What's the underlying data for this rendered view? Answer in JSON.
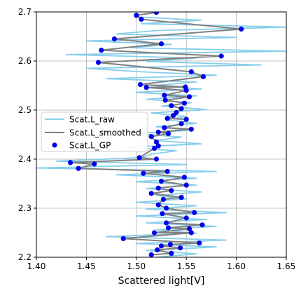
{
  "chart_data": {
    "type": "line",
    "xlabel": "Scattered light[V]",
    "ylabel": "",
    "xlim": [
      1.4,
      1.65
    ],
    "ylim": [
      2.2,
      2.7
    ],
    "grid": true,
    "legend_position": "center-left",
    "x_ticks": [
      "1.40",
      "1.45",
      "1.50",
      "1.55",
      "1.60",
      "1.65"
    ],
    "y_ticks": [
      "2.2",
      "2.3",
      "2.4",
      "2.5",
      "2.6",
      "2.7"
    ],
    "series": [
      {
        "name": "Scat.L_raw",
        "style": "line",
        "color": "#87ceeb",
        "y": [
          2.69,
          2.683,
          2.676,
          2.669,
          2.662,
          2.655,
          2.648,
          2.641,
          2.634,
          2.627,
          2.62,
          2.613,
          2.606,
          2.599,
          2.592,
          2.585,
          2.578,
          2.571,
          2.564,
          2.557,
          2.55,
          2.543,
          2.536,
          2.529,
          2.522,
          2.515,
          2.508,
          2.501,
          2.494,
          2.487,
          2.48,
          2.473,
          2.466,
          2.459,
          2.452,
          2.445,
          2.438,
          2.431,
          2.424,
          2.417,
          2.41,
          2.403,
          2.396,
          2.389,
          2.382,
          2.375,
          2.368,
          2.361,
          2.354,
          2.347,
          2.34,
          2.333,
          2.326,
          2.319,
          2.312,
          2.305,
          2.298,
          2.291,
          2.284,
          2.277,
          2.27,
          2.263,
          2.256,
          2.249,
          2.242,
          2.235,
          2.228,
          2.221,
          2.214,
          2.207,
          2.2
        ],
        "x": [
          1.5,
          1.565,
          1.505,
          1.65,
          1.52,
          1.48,
          1.6,
          1.45,
          1.535,
          1.495,
          1.65,
          1.43,
          1.56,
          1.51,
          1.625,
          1.45,
          1.505,
          1.58,
          1.47,
          1.56,
          1.515,
          1.565,
          1.5,
          1.56,
          1.51,
          1.555,
          1.525,
          1.57,
          1.515,
          1.55,
          1.53,
          1.56,
          1.52,
          1.555,
          1.5,
          1.545,
          1.52,
          1.565,
          1.49,
          1.54,
          1.515,
          1.505,
          1.42,
          1.55,
          1.4,
          1.58,
          1.48,
          1.56,
          1.5,
          1.56,
          1.51,
          1.565,
          1.52,
          1.55,
          1.5,
          1.56,
          1.51,
          1.59,
          1.5,
          1.57,
          1.51,
          1.58,
          1.52,
          1.56,
          1.47,
          1.59,
          1.5,
          1.58,
          1.51,
          1.56,
          1.52
        ]
      },
      {
        "name": "Scat.L_smoothed",
        "style": "line",
        "color": "#808080",
        "x": [
          1.52,
          1.5,
          1.505,
          1.605,
          1.478,
          1.525,
          1.465,
          1.585,
          1.462,
          1.555,
          1.567,
          1.504,
          1.549,
          1.51,
          1.55,
          1.528,
          1.553,
          1.529,
          1.548,
          1.535,
          1.545,
          1.54,
          1.537,
          1.531,
          1.55,
          1.545,
          1.528,
          1.555,
          1.522,
          1.532,
          1.515,
          1.52,
          1.522,
          1.518,
          1.503,
          1.52,
          1.434,
          1.458,
          1.442,
          1.531,
          1.507,
          1.548,
          1.525,
          1.55,
          1.522,
          1.535,
          1.515,
          1.545,
          1.527,
          1.522,
          1.53,
          1.558,
          1.526,
          1.55,
          1.53,
          1.566,
          1.532,
          1.553,
          1.518,
          1.555,
          1.487,
          1.563,
          1.534,
          1.525,
          1.544,
          1.521,
          1.535,
          1.515
        ],
        "y": [
          2.699,
          2.693,
          2.685,
          2.665,
          2.645,
          2.635,
          2.622,
          2.61,
          2.597,
          2.578,
          2.568,
          2.552,
          2.547,
          2.546,
          2.54,
          2.53,
          2.527,
          2.52,
          2.514,
          2.509,
          2.503,
          2.495,
          2.489,
          2.483,
          2.481,
          2.472,
          2.464,
          2.461,
          2.455,
          2.452,
          2.446,
          2.435,
          2.427,
          2.422,
          2.403,
          2.4,
          2.393,
          2.39,
          2.381,
          2.375,
          2.371,
          2.363,
          2.355,
          2.347,
          2.341,
          2.336,
          2.33,
          2.322,
          2.318,
          2.307,
          2.3,
          2.291,
          2.289,
          2.28,
          2.27,
          2.266,
          2.26,
          2.258,
          2.25,
          2.25,
          2.238,
          2.229,
          2.226,
          2.223,
          2.219,
          2.215,
          2.208,
          2.205
        ]
      },
      {
        "name": "Scat.L_GP",
        "style": "scatter",
        "color": "#0000ee",
        "x": [
          1.52,
          1.5,
          1.505,
          1.605,
          1.478,
          1.525,
          1.465,
          1.585,
          1.462,
          1.555,
          1.567,
          1.504,
          1.549,
          1.51,
          1.55,
          1.528,
          1.553,
          1.529,
          1.548,
          1.535,
          1.545,
          1.54,
          1.537,
          1.531,
          1.55,
          1.545,
          1.528,
          1.555,
          1.522,
          1.532,
          1.515,
          1.52,
          1.522,
          1.518,
          1.503,
          1.52,
          1.434,
          1.458,
          1.442,
          1.531,
          1.507,
          1.548,
          1.525,
          1.55,
          1.522,
          1.535,
          1.515,
          1.545,
          1.527,
          1.522,
          1.53,
          1.558,
          1.526,
          1.55,
          1.53,
          1.566,
          1.532,
          1.553,
          1.518,
          1.555,
          1.487,
          1.563,
          1.534,
          1.525,
          1.544,
          1.521,
          1.535,
          1.515
        ],
        "y": [
          2.699,
          2.693,
          2.685,
          2.665,
          2.645,
          2.635,
          2.622,
          2.61,
          2.597,
          2.578,
          2.568,
          2.552,
          2.547,
          2.546,
          2.54,
          2.53,
          2.527,
          2.52,
          2.514,
          2.509,
          2.503,
          2.495,
          2.489,
          2.483,
          2.481,
          2.472,
          2.464,
          2.461,
          2.455,
          2.452,
          2.446,
          2.435,
          2.427,
          2.422,
          2.403,
          2.4,
          2.393,
          2.39,
          2.381,
          2.375,
          2.371,
          2.363,
          2.355,
          2.347,
          2.341,
          2.336,
          2.33,
          2.322,
          2.318,
          2.307,
          2.3,
          2.291,
          2.289,
          2.28,
          2.27,
          2.266,
          2.26,
          2.258,
          2.25,
          2.25,
          2.238,
          2.229,
          2.226,
          2.223,
          2.219,
          2.215,
          2.208,
          2.205
        ]
      }
    ]
  }
}
